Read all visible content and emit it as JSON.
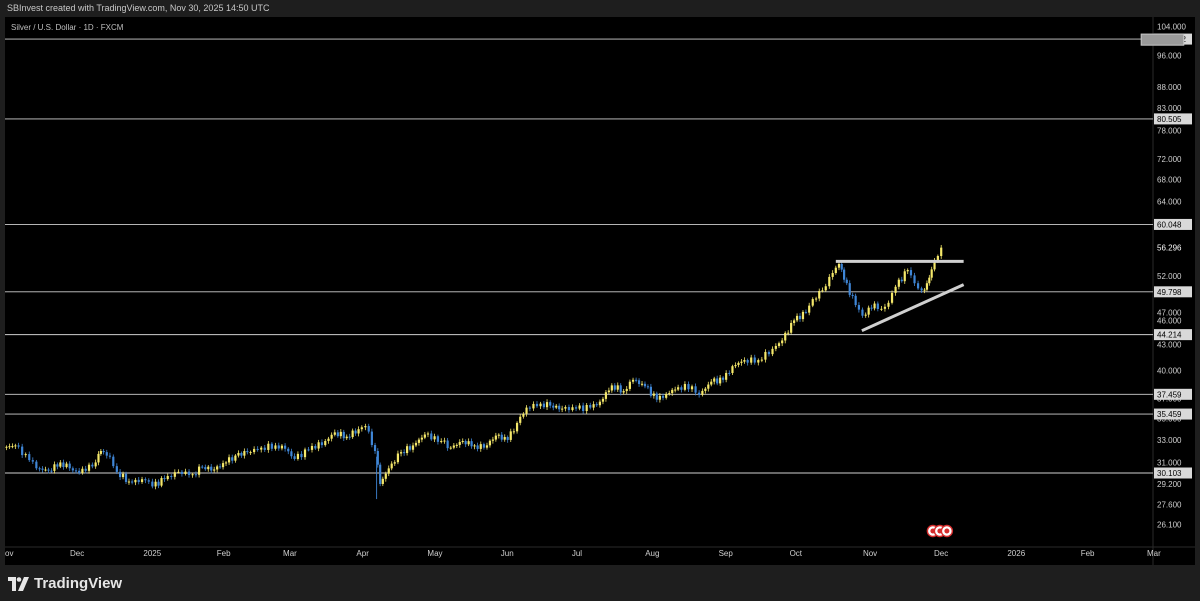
{
  "header": {
    "caption": "SBInvest created with TradingView.com, Nov 30, 2025 14:50 UTC"
  },
  "chart_title": "Silver / U.S. Dollar · 1D · FXCM",
  "brand": {
    "name": "TradingView"
  },
  "colors": {
    "bg": "#000000",
    "up": "#f5e86a",
    "down": "#3f86d6",
    "level": "#d0d0d0",
    "tag": "#d9d9d9"
  },
  "chart_data": {
    "type": "candlestick",
    "title": "Silver / U.S. Dollar · 1D · FXCM",
    "y_scale": "log",
    "ylim": [
      25.2,
      104.5
    ],
    "y_ticks": [
      104.0,
      96.0,
      88.0,
      83.0,
      78.0,
      72.0,
      68.0,
      64.0,
      56.296,
      52.0,
      47.0,
      46.0,
      43.0,
      40.0,
      37.0,
      35.0,
      33.0,
      31.0,
      29.2,
      27.6,
      26.1
    ],
    "y_tick_labels": [
      "104.000",
      "96.000",
      "88.000",
      "83.000",
      "78.000",
      "72.000",
      "68.000",
      "64.000",
      "56.296",
      "52.000",
      "47.000",
      "46.000",
      "43.000",
      "40.000",
      "37.000",
      "35.000",
      "33.000",
      "31.000",
      "29.200",
      "27.600",
      "26.100"
    ],
    "x_labels": [
      {
        "label": "ov",
        "date": "2024-11-01"
      },
      {
        "label": "Dec",
        "date": "2024-12-01"
      },
      {
        "label": "2025",
        "date": "2025-01-01"
      },
      {
        "label": "Feb",
        "date": "2025-02-01"
      },
      {
        "label": "Mar",
        "date": "2025-03-01"
      },
      {
        "label": "Apr",
        "date": "2025-04-01"
      },
      {
        "label": "May",
        "date": "2025-05-01"
      },
      {
        "label": "Jun",
        "date": "2025-06-01"
      },
      {
        "label": "Jul",
        "date": "2025-07-01"
      },
      {
        "label": "Aug",
        "date": "2025-08-01"
      },
      {
        "label": "Sep",
        "date": "2025-09-01"
      },
      {
        "label": "Oct",
        "date": "2025-10-01"
      },
      {
        "label": "Nov",
        "date": "2025-11-01"
      },
      {
        "label": "Dec",
        "date": "2025-12-01"
      },
      {
        "label": "2026",
        "date": "2026-01-01"
      },
      {
        "label": "Feb",
        "date": "2026-02-01"
      },
      {
        "label": "Mar",
        "date": "2026-03-01"
      }
    ],
    "x_range": [
      "2024-11-01",
      "2026-03-01"
    ],
    "horizontal_levels": [
      {
        "value": 100.492,
        "label": "100.492"
      },
      {
        "value": 80.505,
        "label": "80.505"
      },
      {
        "value": 60.048,
        "label": "60.048"
      },
      {
        "value": 49.798,
        "label": "49.798"
      },
      {
        "value": 44.214,
        "label": "44.214"
      },
      {
        "value": 37.459,
        "label": "37.459"
      },
      {
        "value": 35.459,
        "label": "35.459"
      },
      {
        "value": 30.103,
        "label": "30.103"
      }
    ],
    "current_price": {
      "value": 56.296,
      "label": "56.296"
    },
    "trendlines": [
      {
        "name": "resistance",
        "from": {
          "date": "2025-10-18",
          "value": 54.2
        },
        "to": {
          "date": "2025-12-11",
          "value": 54.2
        }
      },
      {
        "name": "rising support",
        "from": {
          "date": "2025-10-29",
          "value": 44.7
        },
        "to": {
          "date": "2025-12-11",
          "value": 50.8
        }
      }
    ],
    "annotation_box": {
      "date_from": "2026-02-24",
      "date_to": "2026-03-14",
      "value_from": 98.8,
      "value_to": 101.9
    },
    "series": [
      {
        "closes": [
          {
            "date": "2024-11-01",
            "close": 32.5
          },
          {
            "date": "2024-11-06",
            "close": 31.2
          },
          {
            "date": "2024-11-12",
            "close": 30.5
          },
          {
            "date": "2024-11-15",
            "close": 30.3
          },
          {
            "date": "2024-11-20",
            "close": 31.0
          },
          {
            "date": "2024-11-25",
            "close": 30.5
          },
          {
            "date": "2024-11-29",
            "close": 30.1
          },
          {
            "date": "2024-12-03",
            "close": 31.0
          },
          {
            "date": "2024-12-10",
            "close": 32.0
          },
          {
            "date": "2024-12-12",
            "close": 31.5
          },
          {
            "date": "2024-12-16",
            "close": 30.2
          },
          {
            "date": "2024-12-19",
            "close": 29.4
          },
          {
            "date": "2024-12-24",
            "close": 29.5
          },
          {
            "date": "2024-12-31",
            "close": 29.0
          },
          {
            "date": "2025-01-03",
            "close": 29.6
          },
          {
            "date": "2025-01-08",
            "close": 30.2
          },
          {
            "date": "2025-01-14",
            "close": 30.0
          },
          {
            "date": "2025-01-20",
            "close": 30.6
          },
          {
            "date": "2025-01-24",
            "close": 30.4
          },
          {
            "date": "2025-01-29",
            "close": 31.0
          },
          {
            "date": "2025-02-03",
            "close": 31.6
          },
          {
            "date": "2025-02-07",
            "close": 31.9
          },
          {
            "date": "2025-02-12",
            "close": 32.3
          },
          {
            "date": "2025-02-18",
            "close": 32.5
          },
          {
            "date": "2025-02-24",
            "close": 32.2
          },
          {
            "date": "2025-02-28",
            "close": 31.3
          },
          {
            "date": "2025-03-04",
            "close": 32.1
          },
          {
            "date": "2025-03-10",
            "close": 32.9
          },
          {
            "date": "2025-03-17",
            "close": 33.7
          },
          {
            "date": "2025-03-21",
            "close": 33.3
          },
          {
            "date": "2025-03-26",
            "close": 34.0
          },
          {
            "date": "2025-03-31",
            "close": 34.3
          },
          {
            "date": "2025-04-03",
            "close": 32.0
          },
          {
            "date": "2025-04-07",
            "close": 29.2
          },
          {
            "date": "2025-04-09",
            "close": 30.9
          },
          {
            "date": "2025-04-14",
            "close": 31.9
          },
          {
            "date": "2025-04-18",
            "close": 32.5
          },
          {
            "date": "2025-04-23",
            "close": 33.5
          },
          {
            "date": "2025-04-28",
            "close": 32.9
          },
          {
            "date": "2025-05-05",
            "close": 32.3
          },
          {
            "date": "2025-05-09",
            "close": 32.9
          },
          {
            "date": "2025-05-14",
            "close": 32.5
          },
          {
            "date": "2025-05-19",
            "close": 32.3
          },
          {
            "date": "2025-05-23",
            "close": 33.4
          },
          {
            "date": "2025-05-28",
            "close": 33.0
          },
          {
            "date": "2025-06-02",
            "close": 34.6
          },
          {
            "date": "2025-06-06",
            "close": 36.1
          },
          {
            "date": "2025-06-10",
            "close": 36.5
          },
          {
            "date": "2025-06-16",
            "close": 36.3
          },
          {
            "date": "2025-06-20",
            "close": 36.0
          },
          {
            "date": "2025-06-25",
            "close": 36.0
          },
          {
            "date": "2025-07-01",
            "close": 36.1
          },
          {
            "date": "2025-07-07",
            "close": 36.7
          },
          {
            "date": "2025-07-11",
            "close": 38.4
          },
          {
            "date": "2025-07-16",
            "close": 37.8
          },
          {
            "date": "2025-07-21",
            "close": 39.0
          },
          {
            "date": "2025-07-25",
            "close": 38.3
          },
          {
            "date": "2025-07-30",
            "close": 36.9
          },
          {
            "date": "2025-08-04",
            "close": 37.5
          },
          {
            "date": "2025-08-08",
            "close": 38.2
          },
          {
            "date": "2025-08-13",
            "close": 38.3
          },
          {
            "date": "2025-08-19",
            "close": 37.4
          },
          {
            "date": "2025-08-22",
            "close": 38.8
          },
          {
            "date": "2025-08-27",
            "close": 39.0
          },
          {
            "date": "2025-09-01",
            "close": 40.5
          },
          {
            "date": "2025-09-05",
            "close": 41.2
          },
          {
            "date": "2025-09-10",
            "close": 41.2
          },
          {
            "date": "2025-09-16",
            "close": 42.5
          },
          {
            "date": "2025-09-22",
            "close": 43.5
          },
          {
            "date": "2025-09-26",
            "close": 46.0
          },
          {
            "date": "2025-10-01",
            "close": 47.0
          },
          {
            "date": "2025-10-06",
            "close": 48.8
          },
          {
            "date": "2025-10-09",
            "close": 50.0
          },
          {
            "date": "2025-10-13",
            "close": 51.9
          },
          {
            "date": "2025-10-16",
            "close": 53.8
          },
          {
            "date": "2025-10-20",
            "close": 51.5
          },
          {
            "date": "2025-10-22",
            "close": 48.0
          },
          {
            "date": "2025-10-27",
            "close": 46.6
          },
          {
            "date": "2025-10-30",
            "close": 48.2
          },
          {
            "date": "2025-11-04",
            "close": 47.5
          },
          {
            "date": "2025-11-07",
            "close": 48.3
          },
          {
            "date": "2025-11-10",
            "close": 50.5
          },
          {
            "date": "2025-11-13",
            "close": 52.9
          },
          {
            "date": "2025-11-18",
            "close": 51.0
          },
          {
            "date": "2025-11-21",
            "close": 50.0
          },
          {
            "date": "2025-11-24",
            "close": 51.0
          },
          {
            "date": "2025-11-26",
            "close": 53.0
          },
          {
            "date": "2025-11-28",
            "close": 56.3
          }
        ]
      }
    ]
  }
}
